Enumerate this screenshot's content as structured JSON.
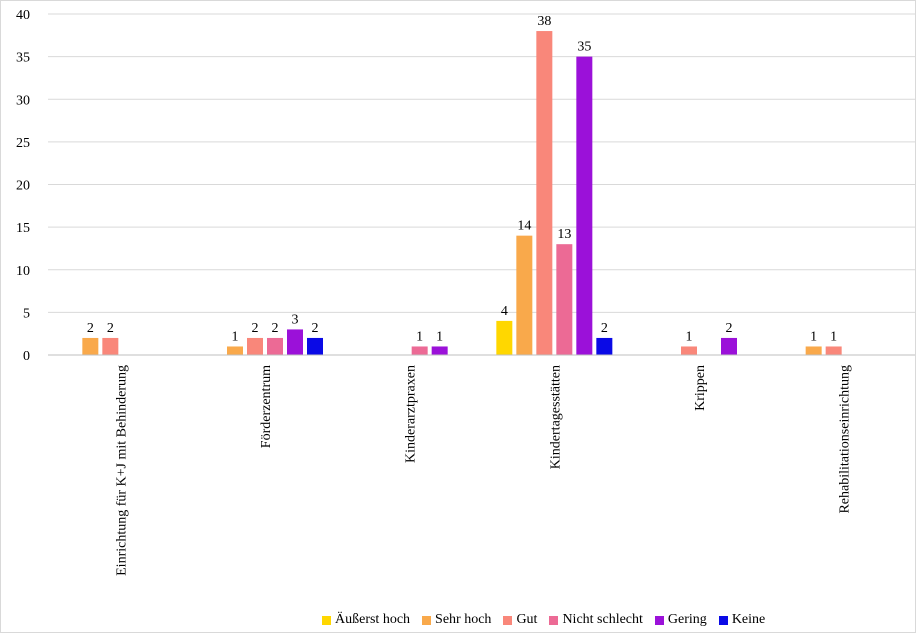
{
  "chart_data": {
    "type": "bar",
    "title": "",
    "xlabel": "",
    "ylabel": "",
    "ylim": [
      0,
      40
    ],
    "yticks": [
      0,
      5,
      10,
      15,
      20,
      25,
      30,
      35,
      40
    ],
    "grid": true,
    "legend_position": "bottom",
    "categories": [
      "Einrichtung für K+J mit Behinderung",
      "Förderzentrum",
      "Kinderarztpraxen",
      "Kindertagesstätten",
      "Krippen",
      "Rehabilitationseinrichtung"
    ],
    "series": [
      {
        "name": "Äußerst hoch",
        "color": "#FFD700",
        "values": [
          null,
          null,
          null,
          4,
          null,
          null
        ]
      },
      {
        "name": "Sehr hoch",
        "color": "#F9A94B",
        "values": [
          2,
          1,
          null,
          14,
          null,
          1
        ]
      },
      {
        "name": "Gut",
        "color": "#F9877A",
        "values": [
          2,
          2,
          null,
          38,
          1,
          1
        ]
      },
      {
        "name": "Nicht schlecht",
        "color": "#EC6A95",
        "values": [
          null,
          2,
          1,
          13,
          null,
          null
        ]
      },
      {
        "name": "Gering",
        "color": "#9B11D9",
        "values": [
          null,
          3,
          1,
          35,
          2,
          null
        ]
      },
      {
        "name": "Keine",
        "color": "#0A0AE6",
        "values": [
          null,
          2,
          null,
          2,
          null,
          null
        ]
      }
    ]
  }
}
